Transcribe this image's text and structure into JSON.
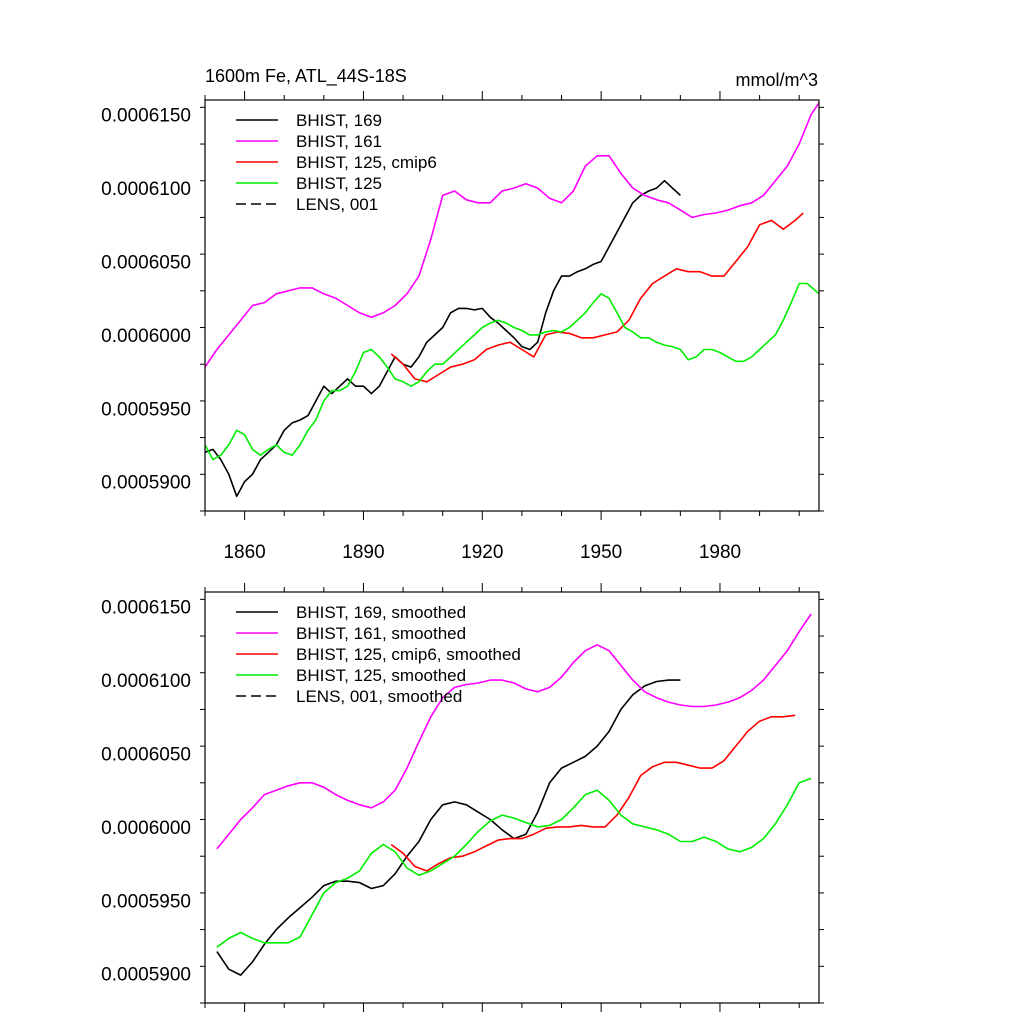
{
  "chart_data": [
    {
      "type": "line",
      "title": "1600m Fe, ATL_44S-18S",
      "units": "mmol/m^3",
      "xlim": [
        1850,
        2005
      ],
      "ylim": [
        0.000588,
        0.000616
      ],
      "x_ticks": [
        1860,
        1890,
        1920,
        1950,
        1980
      ],
      "y_ticks": [
        0.00059,
        0.000595,
        0.0006,
        0.000605,
        0.00061,
        0.000615
      ],
      "y_tick_labels": [
        "0.0005900",
        "0.0005950",
        "0.0006000",
        "0.0006050",
        "0.0006100",
        "0.0006150"
      ],
      "show_x_tick_labels": true,
      "legend_position": "top-left",
      "grid": false,
      "series": [
        {
          "name": "BHIST, 169",
          "color": "#000000",
          "dash": "solid",
          "x": [
            1850,
            1852,
            1854,
            1856,
            1858,
            1859,
            1860,
            1862,
            1864,
            1866,
            1868,
            1870,
            1872,
            1874,
            1876,
            1878,
            1880,
            1882,
            1884,
            1886,
            1888,
            1890,
            1892,
            1894,
            1896,
            1898,
            1900,
            1902,
            1904,
            1906,
            1908,
            1910,
            1912,
            1914,
            1916,
            1918,
            1920,
            1922,
            1924,
            1926,
            1928,
            1930,
            1932,
            1934,
            1936,
            1938,
            1940,
            1942,
            1944,
            1946,
            1948,
            1950,
            1952,
            1954,
            1956,
            1958,
            1960,
            1962,
            1964,
            1966,
            1968,
            1970
          ],
          "y": [
            0.000592,
            0.0005922,
            0.0005915,
            0.0005905,
            0.000589,
            0.0005895,
            0.00059,
            0.0005905,
            0.0005915,
            0.000592,
            0.0005925,
            0.0005935,
            0.000594,
            0.0005942,
            0.0005945,
            0.0005955,
            0.0005965,
            0.000596,
            0.0005965,
            0.000597,
            0.0005965,
            0.0005965,
            0.000596,
            0.0005965,
            0.0005975,
            0.0005985,
            0.000598,
            0.0005978,
            0.0005985,
            0.0005995,
            0.0006,
            0.0006005,
            0.0006015,
            0.0006018,
            0.0006018,
            0.0006017,
            0.0006018,
            0.0006012,
            0.0006008,
            0.0006003,
            0.0005998,
            0.0005992,
            0.000599,
            0.0005995,
            0.0006015,
            0.000603,
            0.000604,
            0.000604,
            0.0006043,
            0.0006045,
            0.0006048,
            0.000605,
            0.000606,
            0.000607,
            0.000608,
            0.000609,
            0.0006095,
            0.0006098,
            0.00061,
            0.0006105,
            0.00061,
            0.0006095
          ]
        },
        {
          "name": "BHIST, 161",
          "color": "#ff00ff",
          "dash": "solid",
          "x": [
            1850,
            1853,
            1856,
            1859,
            1862,
            1865,
            1868,
            1871,
            1874,
            1877,
            1880,
            1883,
            1886,
            1889,
            1892,
            1895,
            1898,
            1901,
            1904,
            1907,
            1910,
            1913,
            1916,
            1919,
            1922,
            1925,
            1928,
            1931,
            1934,
            1937,
            1940,
            1943,
            1946,
            1949,
            1952,
            1955,
            1958,
            1961,
            1964,
            1967,
            1970,
            1973,
            1976,
            1979,
            1982,
            1985,
            1988,
            1991,
            1994,
            1997,
            2000,
            2003,
            2005
          ],
          "y": [
            0.0005978,
            0.000599,
            0.0006,
            0.000601,
            0.000602,
            0.0006022,
            0.0006028,
            0.000603,
            0.0006032,
            0.0006032,
            0.0006028,
            0.0006025,
            0.000602,
            0.0006015,
            0.0006012,
            0.0006015,
            0.000602,
            0.0006028,
            0.000604,
            0.0006065,
            0.0006095,
            0.0006098,
            0.0006092,
            0.000609,
            0.000609,
            0.0006098,
            0.00061,
            0.0006103,
            0.00061,
            0.0006093,
            0.000609,
            0.0006098,
            0.0006115,
            0.0006122,
            0.0006122,
            0.000611,
            0.00061,
            0.0006095,
            0.0006092,
            0.000609,
            0.0006085,
            0.000608,
            0.0006082,
            0.0006083,
            0.0006085,
            0.0006088,
            0.000609,
            0.0006095,
            0.0006105,
            0.0006115,
            0.000613,
            0.000615,
            0.0006158
          ]
        },
        {
          "name": "BHIST, 125, cmip6",
          "color": "#ff0000",
          "dash": "solid",
          "x": [
            1897,
            1900,
            1903,
            1906,
            1909,
            1912,
            1915,
            1918,
            1921,
            1924,
            1927,
            1930,
            1933,
            1936,
            1939,
            1942,
            1945,
            1948,
            1951,
            1954,
            1957,
            1960,
            1963,
            1966,
            1969,
            1972,
            1975,
            1978,
            1981,
            1984,
            1987,
            1990,
            1993,
            1996,
            1999,
            2001
          ],
          "y": [
            0.0005987,
            0.000598,
            0.000597,
            0.0005968,
            0.0005973,
            0.0005978,
            0.000598,
            0.0005983,
            0.000599,
            0.0005993,
            0.0005995,
            0.000599,
            0.0005985,
            0.0006,
            0.0006002,
            0.0006001,
            0.0005998,
            0.0005998,
            0.0006,
            0.0006002,
            0.000601,
            0.0006025,
            0.0006035,
            0.000604,
            0.0006045,
            0.0006043,
            0.0006043,
            0.000604,
            0.000604,
            0.000605,
            0.000606,
            0.0006075,
            0.0006078,
            0.0006072,
            0.0006078,
            0.0006083
          ]
        },
        {
          "name": "BHIST, 125",
          "color": "#00ee00",
          "dash": "solid",
          "x": [
            1850,
            1852,
            1854,
            1856,
            1858,
            1860,
            1862,
            1864,
            1866,
            1868,
            1870,
            1872,
            1874,
            1876,
            1878,
            1880,
            1882,
            1884,
            1886,
            1888,
            1890,
            1892,
            1894,
            1896,
            1898,
            1900,
            1902,
            1904,
            1906,
            1908,
            1910,
            1912,
            1914,
            1916,
            1918,
            1920,
            1922,
            1924,
            1926,
            1928,
            1930,
            1932,
            1934,
            1936,
            1938,
            1940,
            1942,
            1944,
            1946,
            1948,
            1950,
            1952,
            1954,
            1956,
            1958,
            1960,
            1962,
            1964,
            1966,
            1968,
            1970,
            1972,
            1974,
            1976,
            1978,
            1980,
            1982,
            1984,
            1986,
            1988,
            1990,
            1992,
            1994,
            1996,
            1998,
            2000,
            2002,
            2005
          ],
          "y": [
            0.0005925,
            0.0005915,
            0.0005918,
            0.0005925,
            0.0005935,
            0.0005932,
            0.0005922,
            0.0005918,
            0.0005922,
            0.0005925,
            0.000592,
            0.0005918,
            0.0005925,
            0.0005935,
            0.0005942,
            0.0005955,
            0.0005962,
            0.0005962,
            0.0005965,
            0.0005975,
            0.0005988,
            0.000599,
            0.0005985,
            0.0005978,
            0.000597,
            0.0005968,
            0.0005965,
            0.0005968,
            0.0005975,
            0.000598,
            0.000598,
            0.0005985,
            0.000599,
            0.0005995,
            0.0006,
            0.0006005,
            0.0006008,
            0.000601,
            0.0006008,
            0.0006005,
            0.0006003,
            0.0006,
            0.0006,
            0.0006002,
            0.0006003,
            0.0006002,
            0.0006005,
            0.000601,
            0.0006015,
            0.0006022,
            0.0006028,
            0.0006025,
            0.0006015,
            0.0006005,
            0.0006002,
            0.0005998,
            0.0005998,
            0.0005995,
            0.0005993,
            0.0005992,
            0.000599,
            0.0005983,
            0.0005985,
            0.000599,
            0.000599,
            0.0005988,
            0.0005985,
            0.0005982,
            0.0005982,
            0.0005985,
            0.000599,
            0.0005995,
            0.0006,
            0.000601,
            0.0006022,
            0.0006035,
            0.0006035,
            0.0006028
          ]
        },
        {
          "name": "LENS, 001",
          "color": "#000000",
          "dash": "dashed",
          "x": [],
          "y": []
        }
      ]
    },
    {
      "type": "line",
      "title": "",
      "units": "",
      "xlim": [
        1850,
        2005
      ],
      "ylim": [
        0.000588,
        0.000616
      ],
      "x_ticks": [
        1860,
        1890,
        1920,
        1950,
        1980
      ],
      "y_ticks": [
        0.00059,
        0.000595,
        0.0006,
        0.000605,
        0.00061,
        0.000615
      ],
      "y_tick_labels": [
        "0.0005900",
        "0.0005950",
        "0.0006000",
        "0.0006050",
        "0.0006100",
        "0.0006150"
      ],
      "show_x_tick_labels": false,
      "legend_position": "top-left",
      "grid": false,
      "series": [
        {
          "name": "BHIST, 169, smoothed",
          "color": "#000000",
          "dash": "solid",
          "x": [
            1853,
            1856,
            1859,
            1862,
            1865,
            1868,
            1871,
            1874,
            1877,
            1880,
            1883,
            1886,
            1889,
            1892,
            1895,
            1898,
            1901,
            1904,
            1907,
            1910,
            1913,
            1916,
            1919,
            1922,
            1925,
            1928,
            1931,
            1934,
            1937,
            1940,
            1943,
            1946,
            1949,
            1952,
            1955,
            1958,
            1961,
            1964,
            1967,
            1970
          ],
          "y": [
            0.0005915,
            0.0005903,
            0.0005899,
            0.0005908,
            0.000592,
            0.000593,
            0.0005938,
            0.0005945,
            0.0005952,
            0.000596,
            0.0005963,
            0.0005963,
            0.0005962,
            0.0005958,
            0.000596,
            0.0005968,
            0.000598,
            0.000599,
            0.0006005,
            0.0006015,
            0.0006017,
            0.0006015,
            0.000601,
            0.0006005,
            0.0005998,
            0.0005992,
            0.0005995,
            0.000601,
            0.000603,
            0.000604,
            0.0006044,
            0.0006048,
            0.0006055,
            0.0006065,
            0.000608,
            0.000609,
            0.0006096,
            0.0006099,
            0.00061,
            0.00061
          ]
        },
        {
          "name": "BHIST, 161, smoothed",
          "color": "#ff00ff",
          "dash": "solid",
          "x": [
            1853,
            1856,
            1859,
            1862,
            1865,
            1868,
            1871,
            1874,
            1877,
            1880,
            1883,
            1886,
            1889,
            1892,
            1895,
            1898,
            1901,
            1904,
            1907,
            1910,
            1913,
            1916,
            1919,
            1922,
            1925,
            1928,
            1931,
            1934,
            1937,
            1940,
            1943,
            1946,
            1949,
            1952,
            1955,
            1958,
            1961,
            1964,
            1967,
            1970,
            1973,
            1976,
            1979,
            1982,
            1985,
            1988,
            1991,
            1994,
            1997,
            2000,
            2003
          ],
          "y": [
            0.0005985,
            0.0005995,
            0.0006005,
            0.0006013,
            0.0006022,
            0.0006025,
            0.0006028,
            0.000603,
            0.000603,
            0.0006027,
            0.0006022,
            0.0006018,
            0.0006015,
            0.0006013,
            0.0006017,
            0.0006025,
            0.000604,
            0.0006058,
            0.0006075,
            0.0006088,
            0.0006095,
            0.0006097,
            0.0006098,
            0.00061,
            0.00061,
            0.0006098,
            0.0006094,
            0.0006092,
            0.0006095,
            0.0006102,
            0.0006112,
            0.000612,
            0.0006124,
            0.000612,
            0.000611,
            0.00061,
            0.0006092,
            0.0006088,
            0.0006085,
            0.0006083,
            0.0006082,
            0.0006082,
            0.0006083,
            0.0006085,
            0.0006088,
            0.0006093,
            0.00061,
            0.000611,
            0.000612,
            0.0006133,
            0.0006145
          ]
        },
        {
          "name": "BHIST, 125, cmip6, smoothed",
          "color": "#ff0000",
          "dash": "solid",
          "x": [
            1897,
            1900,
            1903,
            1906,
            1909,
            1912,
            1915,
            1918,
            1921,
            1924,
            1927,
            1930,
            1933,
            1936,
            1939,
            1942,
            1945,
            1948,
            1951,
            1954,
            1957,
            1960,
            1963,
            1966,
            1969,
            1972,
            1975,
            1978,
            1981,
            1984,
            1987,
            1990,
            1993,
            1996,
            1999
          ],
          "y": [
            0.0005988,
            0.0005982,
            0.0005973,
            0.000597,
            0.0005975,
            0.0005979,
            0.000598,
            0.0005983,
            0.0005987,
            0.0005991,
            0.0005992,
            0.0005992,
            0.0005995,
            0.0005999,
            0.0006,
            0.0006,
            0.0006001,
            0.0006,
            0.0006,
            0.0006008,
            0.000602,
            0.0006035,
            0.0006041,
            0.0006044,
            0.0006044,
            0.0006042,
            0.000604,
            0.000604,
            0.0006045,
            0.0006055,
            0.0006065,
            0.0006072,
            0.0006075,
            0.0006075,
            0.0006076
          ]
        },
        {
          "name": "BHIST, 125, smoothed",
          "color": "#00ee00",
          "dash": "solid",
          "x": [
            1853,
            1856,
            1859,
            1862,
            1865,
            1868,
            1871,
            1874,
            1877,
            1880,
            1883,
            1886,
            1889,
            1892,
            1895,
            1898,
            1901,
            1904,
            1907,
            1910,
            1913,
            1916,
            1919,
            1922,
            1925,
            1928,
            1931,
            1934,
            1937,
            1940,
            1943,
            1946,
            1949,
            1952,
            1955,
            1958,
            1961,
            1964,
            1967,
            1970,
            1973,
            1976,
            1979,
            1982,
            1985,
            1988,
            1991,
            1994,
            1997,
            2000,
            2003
          ],
          "y": [
            0.0005918,
            0.0005924,
            0.0005928,
            0.0005924,
            0.0005921,
            0.0005921,
            0.0005921,
            0.0005925,
            0.000594,
            0.0005955,
            0.0005962,
            0.0005965,
            0.000597,
            0.0005982,
            0.0005988,
            0.0005983,
            0.0005972,
            0.0005967,
            0.000597,
            0.0005975,
            0.000598,
            0.0005988,
            0.0005997,
            0.0006004,
            0.0006008,
            0.0006006,
            0.0006003,
            0.0006,
            0.0006001,
            0.0006005,
            0.0006013,
            0.0006022,
            0.0006025,
            0.0006018,
            0.0006008,
            0.0006002,
            0.0006,
            0.0005998,
            0.0005995,
            0.000599,
            0.000599,
            0.0005993,
            0.000599,
            0.0005985,
            0.0005983,
            0.0005986,
            0.0005992,
            0.0006002,
            0.0006015,
            0.000603,
            0.0006033
          ]
        },
        {
          "name": "LENS, 001, smoothed",
          "color": "#000000",
          "dash": "dashed",
          "x": [],
          "y": []
        }
      ]
    }
  ]
}
